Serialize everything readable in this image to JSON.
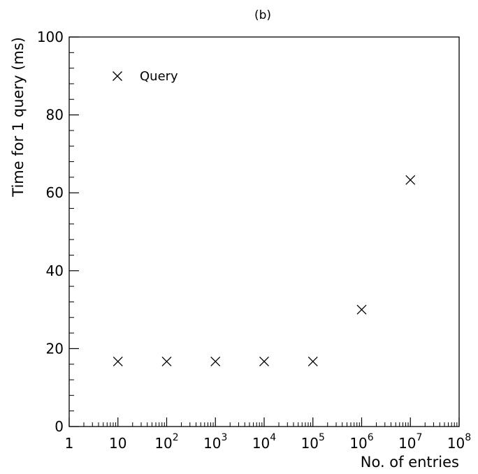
{
  "chart_data": {
    "type": "scatter",
    "title": "(b)",
    "xlabel": "No. of entries",
    "ylabel": "Time for 1 query (ms)",
    "x_scale": "log",
    "xlim": [
      1,
      100000000
    ],
    "ylim": [
      0,
      100
    ],
    "grid": false,
    "legend_position": "top-left",
    "marker": "x",
    "color": "#000000",
    "x_ticks": [
      {
        "value": 1,
        "base": "1",
        "exp": ""
      },
      {
        "value": 10,
        "base": "10",
        "exp": ""
      },
      {
        "value": 100,
        "base": "10",
        "exp": "2"
      },
      {
        "value": 1000,
        "base": "10",
        "exp": "3"
      },
      {
        "value": 10000,
        "base": "10",
        "exp": "4"
      },
      {
        "value": 100000,
        "base": "10",
        "exp": "5"
      },
      {
        "value": 1000000,
        "base": "10",
        "exp": "6"
      },
      {
        "value": 10000000,
        "base": "10",
        "exp": "7"
      },
      {
        "value": 100000000,
        "base": "10",
        "exp": "8"
      }
    ],
    "y_ticks": [
      0,
      20,
      40,
      60,
      80,
      100
    ],
    "series": [
      {
        "name": "Query",
        "points": [
          {
            "x": 10,
            "y": 16.7
          },
          {
            "x": 100,
            "y": 16.7
          },
          {
            "x": 1000,
            "y": 16.7
          },
          {
            "x": 10000,
            "y": 16.7
          },
          {
            "x": 100000,
            "y": 16.7
          },
          {
            "x": 1000000,
            "y": 30
          },
          {
            "x": 10000000,
            "y": 63.3
          }
        ]
      }
    ]
  }
}
